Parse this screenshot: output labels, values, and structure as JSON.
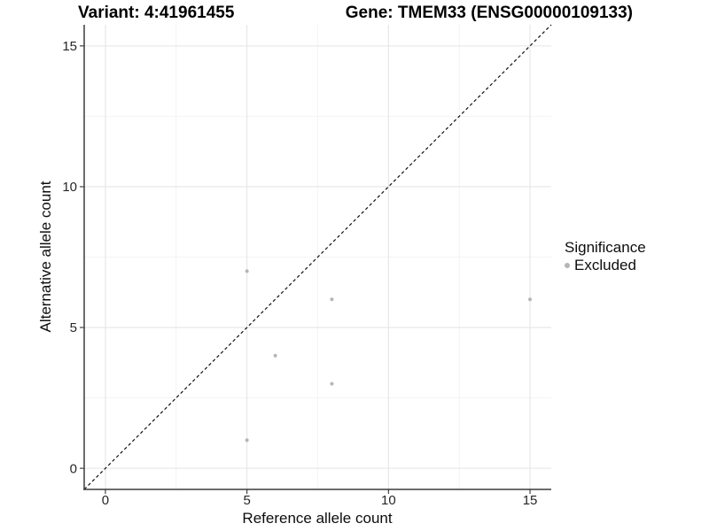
{
  "header": {
    "left_title": "Variant: 4:41961455",
    "right_title": "Gene: TMEM33 (ENSG00000109133)"
  },
  "chart_data": {
    "type": "scatter",
    "title": "Variant: 4:41961455",
    "subtitle": "Gene: TMEM33 (ENSG00000109133)",
    "xlabel": "Reference allele count",
    "ylabel": "Alternative allele count",
    "xlim": [
      -0.75,
      15.75
    ],
    "ylim": [
      -0.75,
      15.75
    ],
    "x_ticks": [
      0,
      5,
      10,
      15
    ],
    "y_ticks": [
      0,
      5,
      10,
      15
    ],
    "minor_ticks": [
      2.5,
      7.5,
      12.5
    ],
    "grid": true,
    "identity_line": {
      "style": "dashed",
      "slope": 1,
      "intercept": 0
    },
    "series": [
      {
        "name": "Excluded",
        "color": "#b5b5b5",
        "points": [
          [
            5,
            1
          ],
          [
            5,
            7
          ],
          [
            6,
            4
          ],
          [
            8,
            3
          ],
          [
            8,
            6
          ],
          [
            15,
            6
          ]
        ]
      }
    ],
    "legend": {
      "title": "Significance",
      "position": "right",
      "items": [
        {
          "label": "Excluded",
          "color": "#b5b5b5"
        }
      ]
    },
    "colors": {
      "grid_major": "#e5e5e5",
      "grid_minor": "#f0f0f0",
      "axis_line": "#3c3c3c",
      "tick_mark": "#333333",
      "identity": "#111111",
      "point": "#b5b5b5"
    }
  }
}
